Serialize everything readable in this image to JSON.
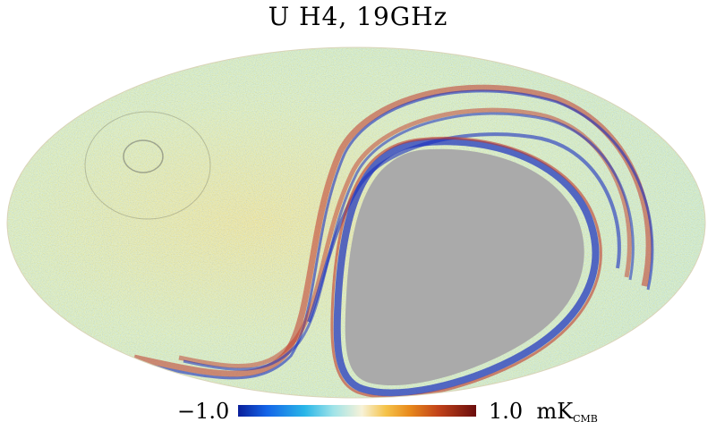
{
  "title": "U  H4,  19GHz",
  "colorbar": {
    "min_label": "−1.0",
    "max_label": "1.0",
    "unit_main": "mK",
    "unit_sub": "CMB"
  },
  "colors": {
    "masked": "#aaaaaa",
    "noise_teal": "#5fd0dc",
    "noise_orange": "#e8b04a",
    "noise_cream": "#efe6c9",
    "stripe_blue": "#1a2fbf",
    "stripe_red": "#c0392b"
  }
}
